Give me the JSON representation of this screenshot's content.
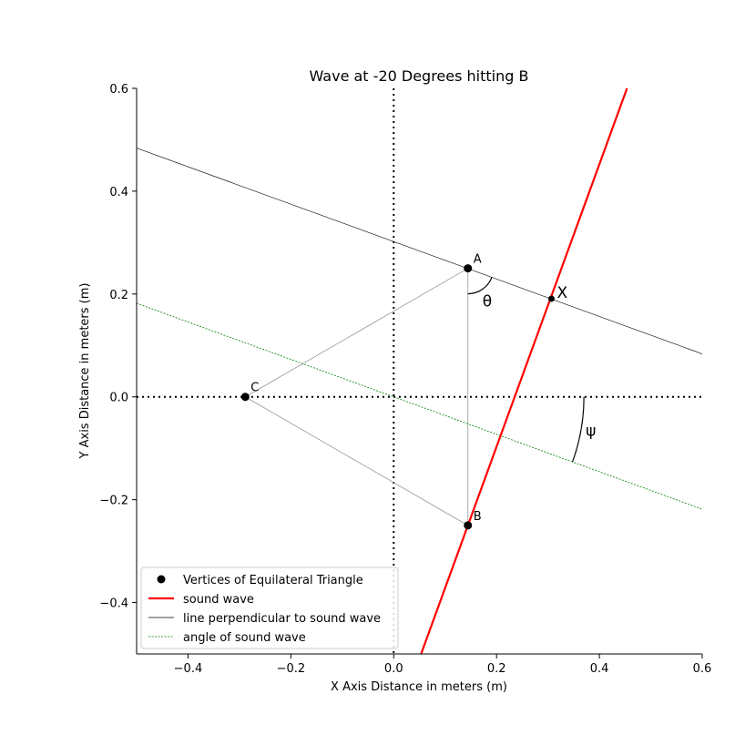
{
  "chart_data": {
    "type": "line",
    "title": "Wave at -20 Degrees hitting B",
    "xlabel": "X Axis Distance in meters (m)",
    "ylabel": "Y Axis Distance in meters (m)",
    "xlim": [
      -0.5,
      0.6
    ],
    "ylim": [
      -0.5,
      0.6
    ],
    "xticks": [
      -0.4,
      -0.2,
      0.0,
      0.2,
      0.4,
      0.6
    ],
    "xtick_labels": [
      "−0.4",
      "−0.2",
      "0.0",
      "0.2",
      "0.4",
      "0.6"
    ],
    "yticks": [
      -0.4,
      -0.2,
      0.0,
      0.2,
      0.4,
      0.6
    ],
    "ytick_labels": [
      "−0.4",
      "−0.2",
      "0.0",
      "0.2",
      "0.4",
      "0.6"
    ],
    "grid": false,
    "legend_position": "lower-left",
    "vertices": [
      {
        "label": "A",
        "x": 0.1443,
        "y": 0.25
      },
      {
        "label": "B",
        "x": 0.1443,
        "y": -0.25
      },
      {
        "label": "C",
        "x": -0.2887,
        "y": 0.0
      }
    ],
    "point_x": {
      "label": "X",
      "x": 0.3068,
      "y": 0.1909
    },
    "angle_labels": {
      "theta": "θ",
      "psi": "ψ"
    },
    "series": [
      {
        "name": "Vertices of Equilateral Triangle",
        "style": "marker",
        "color": "#000000"
      },
      {
        "name": "sound wave",
        "style": "line",
        "color": "#ff0000",
        "x": [
          0.0533,
          0.4537
        ],
        "y": [
          -0.5,
          0.6
        ]
      },
      {
        "name": "line perpendicular to sound wave",
        "style": "line",
        "color": "#000000",
        "x": [
          -0.5,
          0.6
        ],
        "y": [
          0.4839,
          0.0836
        ]
      },
      {
        "name": "angle of sound wave",
        "style": "dotted",
        "color": "#008000",
        "x": [
          -0.5,
          0.6
        ],
        "y": [
          0.182,
          -0.2184
        ]
      }
    ],
    "colors": {
      "sound_wave": "#ff0000",
      "perpendicular": "#000000",
      "angle_line": "#008000",
      "triangle_edges": "#999999"
    }
  }
}
